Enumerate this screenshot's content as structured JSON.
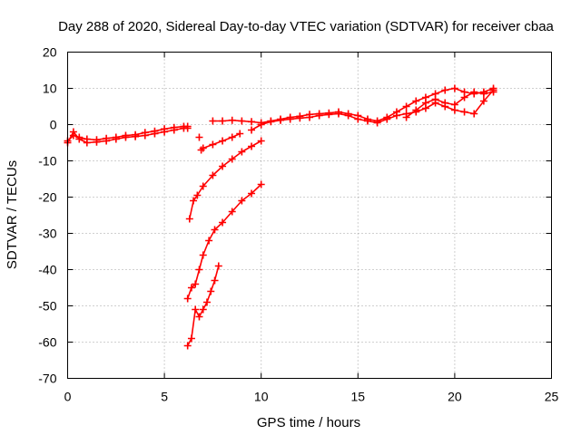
{
  "chart_data": {
    "type": "scatter",
    "title": "Day 288 of 2020, Sidereal Day-to-day VTEC variation (SDTVAR) for receiver cbaa",
    "xlabel": "GPS time / hours",
    "ylabel": "SDTVAR / TECUs",
    "xlim": [
      0,
      25
    ],
    "ylim": [
      -70,
      20
    ],
    "xticks": [
      0,
      5,
      10,
      15,
      20,
      25
    ],
    "yticks": [
      -70,
      -60,
      -50,
      -40,
      -30,
      -20,
      -10,
      0,
      10,
      20
    ],
    "grid": true,
    "marker": "+",
    "color": "#ff0000",
    "series": [
      {
        "name": "main-track-1",
        "x": [
          0.0,
          0.3,
          0.6,
          1.0,
          1.5,
          2.0,
          2.5,
          3.0,
          3.5,
          4.0,
          4.5,
          5.0,
          5.5,
          6.0,
          6.2
        ],
        "y": [
          -4.5,
          -3.0,
          -3.5,
          -4.0,
          -4.2,
          -3.8,
          -3.5,
          -3.0,
          -2.8,
          -2.2,
          -1.8,
          -1.2,
          -0.8,
          -0.5,
          -0.5
        ]
      },
      {
        "name": "main-track-2",
        "x": [
          0.0,
          0.3,
          0.6,
          1.0,
          1.5,
          2.0,
          2.5,
          3.0,
          3.5,
          4.0,
          4.5,
          5.0,
          5.5,
          6.0,
          6.2
        ],
        "y": [
          -5.0,
          -2.0,
          -4.0,
          -5.0,
          -4.8,
          -4.5,
          -4.0,
          -3.5,
          -3.3,
          -3.0,
          -2.5,
          -2.0,
          -1.5,
          -1.0,
          -1.0
        ]
      },
      {
        "name": "main-track-3",
        "x": [
          7.5,
          8.0,
          8.5,
          9.0,
          9.5,
          10.0,
          10.5,
          11.0,
          11.5,
          12.0,
          12.5,
          13.0,
          13.5,
          14.0,
          14.5,
          15.0,
          15.5,
          16.0,
          16.5,
          17.0,
          17.5,
          18.0,
          18.5,
          19.0,
          19.5,
          20.0,
          20.5,
          21.0,
          21.5,
          22.0
        ],
        "y": [
          1.0,
          1.0,
          1.2,
          1.0,
          0.8,
          0.5,
          1.0,
          1.5,
          2.0,
          2.3,
          2.8,
          3.0,
          3.2,
          3.5,
          3.0,
          2.5,
          1.5,
          1.0,
          2.0,
          3.5,
          5.0,
          6.5,
          7.5,
          8.5,
          9.5,
          10.0,
          9.0,
          8.5,
          9.0,
          10.0
        ]
      },
      {
        "name": "main-track-4",
        "x": [
          9.5,
          10.0,
          10.5,
          11.0,
          11.5,
          12.0,
          12.5,
          13.0,
          13.5,
          14.0,
          14.5,
          15.0,
          15.5,
          16.0,
          16.5,
          17.0,
          17.5,
          18.0,
          18.5,
          19.0,
          19.5,
          20.0,
          20.5,
          21.0,
          21.5,
          22.0
        ],
        "y": [
          -1.5,
          0.0,
          0.8,
          1.2,
          1.5,
          1.8,
          2.0,
          2.5,
          2.8,
          3.0,
          2.5,
          1.5,
          1.0,
          0.5,
          1.5,
          2.5,
          3.0,
          3.5,
          4.5,
          6.0,
          5.0,
          4.0,
          3.5,
          3.0,
          6.5,
          9.5
        ]
      },
      {
        "name": "main-track-5",
        "x": [
          17.5,
          18.0,
          18.5,
          19.0,
          19.5,
          20.0,
          20.5,
          21.0,
          21.5,
          22.0
        ],
        "y": [
          2.0,
          4.0,
          6.0,
          7.0,
          6.0,
          5.5,
          7.5,
          9.0,
          8.5,
          9.0
        ]
      },
      {
        "name": "descending-arc-1",
        "x": [
          6.9,
          7.0,
          7.5,
          8.0,
          8.5,
          8.9
        ],
        "y": [
          -7.0,
          -6.5,
          -5.5,
          -4.5,
          -3.5,
          -2.5
        ]
      },
      {
        "name": "descending-arc-2",
        "x": [
          6.3,
          6.5,
          6.7,
          7.0,
          7.5,
          8.0,
          8.5,
          9.0,
          9.5,
          10.0
        ],
        "y": [
          -26.0,
          -21.0,
          -19.5,
          -17.0,
          -14.0,
          -11.5,
          -9.5,
          -7.5,
          -6.0,
          -4.5
        ]
      },
      {
        "name": "descending-arc-3",
        "x": [
          6.2,
          6.4,
          6.6,
          6.8,
          7.0,
          7.3,
          7.6,
          8.0,
          8.5,
          9.0,
          9.5,
          10.0
        ],
        "y": [
          -48.0,
          -45.0,
          -44.0,
          -40.0,
          -36.0,
          -32.0,
          -29.0,
          -27.0,
          -24.0,
          -21.0,
          -19.0,
          -16.5
        ]
      },
      {
        "name": "descending-arc-4",
        "x": [
          6.2,
          6.4,
          6.6,
          6.8,
          7.0,
          7.2,
          7.4,
          7.6,
          7.8
        ],
        "y": [
          -61.0,
          -59.0,
          -51.0,
          -53.0,
          -51.0,
          -49.0,
          -46.0,
          -43.0,
          -39.0
        ]
      },
      {
        "name": "isolated-point",
        "x": [
          6.8
        ],
        "y": [
          -3.5
        ]
      }
    ]
  }
}
